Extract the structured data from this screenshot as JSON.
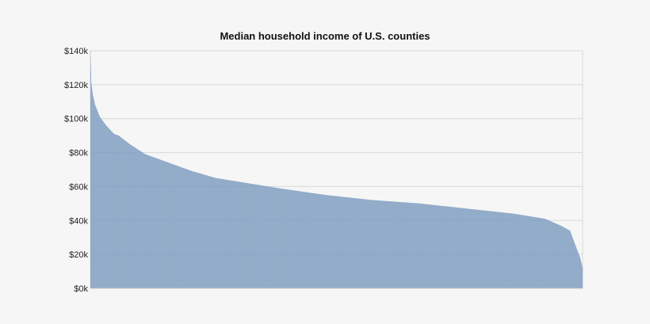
{
  "chart_data": {
    "type": "bar",
    "title": "Median household income of U.S. counties",
    "xlabel": "",
    "ylabel": "",
    "ylim": [
      0,
      140000
    ],
    "grid": true,
    "legend": "none",
    "yticks": [
      {
        "value": 0,
        "label": "$0k"
      },
      {
        "value": 20000,
        "label": "$20k"
      },
      {
        "value": 40000,
        "label": "$40k"
      },
      {
        "value": 60000,
        "label": "$60k"
      },
      {
        "value": 80000,
        "label": "$80k"
      },
      {
        "value": 100000,
        "label": "$100k"
      },
      {
        "value": 120000,
        "label": "$120k"
      },
      {
        "value": 140000,
        "label": "$140k"
      }
    ],
    "sort_order": "descending",
    "count": 3141,
    "profile": [
      {
        "rank": 0,
        "value": 140000
      },
      {
        "rank": 5,
        "value": 121000
      },
      {
        "rank": 15,
        "value": 114000
      },
      {
        "rank": 30,
        "value": 108000
      },
      {
        "rank": 60,
        "value": 101000
      },
      {
        "rank": 100,
        "value": 96000
      },
      {
        "rank": 150,
        "value": 91000
      },
      {
        "rank": 180,
        "value": 90000
      },
      {
        "rank": 250,
        "value": 85000
      },
      {
        "rank": 350,
        "value": 79000
      },
      {
        "rank": 500,
        "value": 74000
      },
      {
        "rank": 650,
        "value": 69000
      },
      {
        "rank": 800,
        "value": 65000
      },
      {
        "rank": 1000,
        "value": 62000
      },
      {
        "rank": 1200,
        "value": 59000
      },
      {
        "rank": 1500,
        "value": 55000
      },
      {
        "rank": 1800,
        "value": 52000
      },
      {
        "rank": 2100,
        "value": 50000
      },
      {
        "rank": 2400,
        "value": 47000
      },
      {
        "rank": 2700,
        "value": 44000
      },
      {
        "rank": 2900,
        "value": 41000
      },
      {
        "rank": 3000,
        "value": 37000
      },
      {
        "rank": 3060,
        "value": 34000
      },
      {
        "rank": 3100,
        "value": 24000
      },
      {
        "rank": 3125,
        "value": 18000
      },
      {
        "rank": 3140,
        "value": 12000
      }
    ],
    "colors": {
      "bar": "#7b9bbf",
      "grid": "#d9d9d9",
      "axis": "#c8c8c8",
      "background": "#f6f6f6"
    }
  }
}
